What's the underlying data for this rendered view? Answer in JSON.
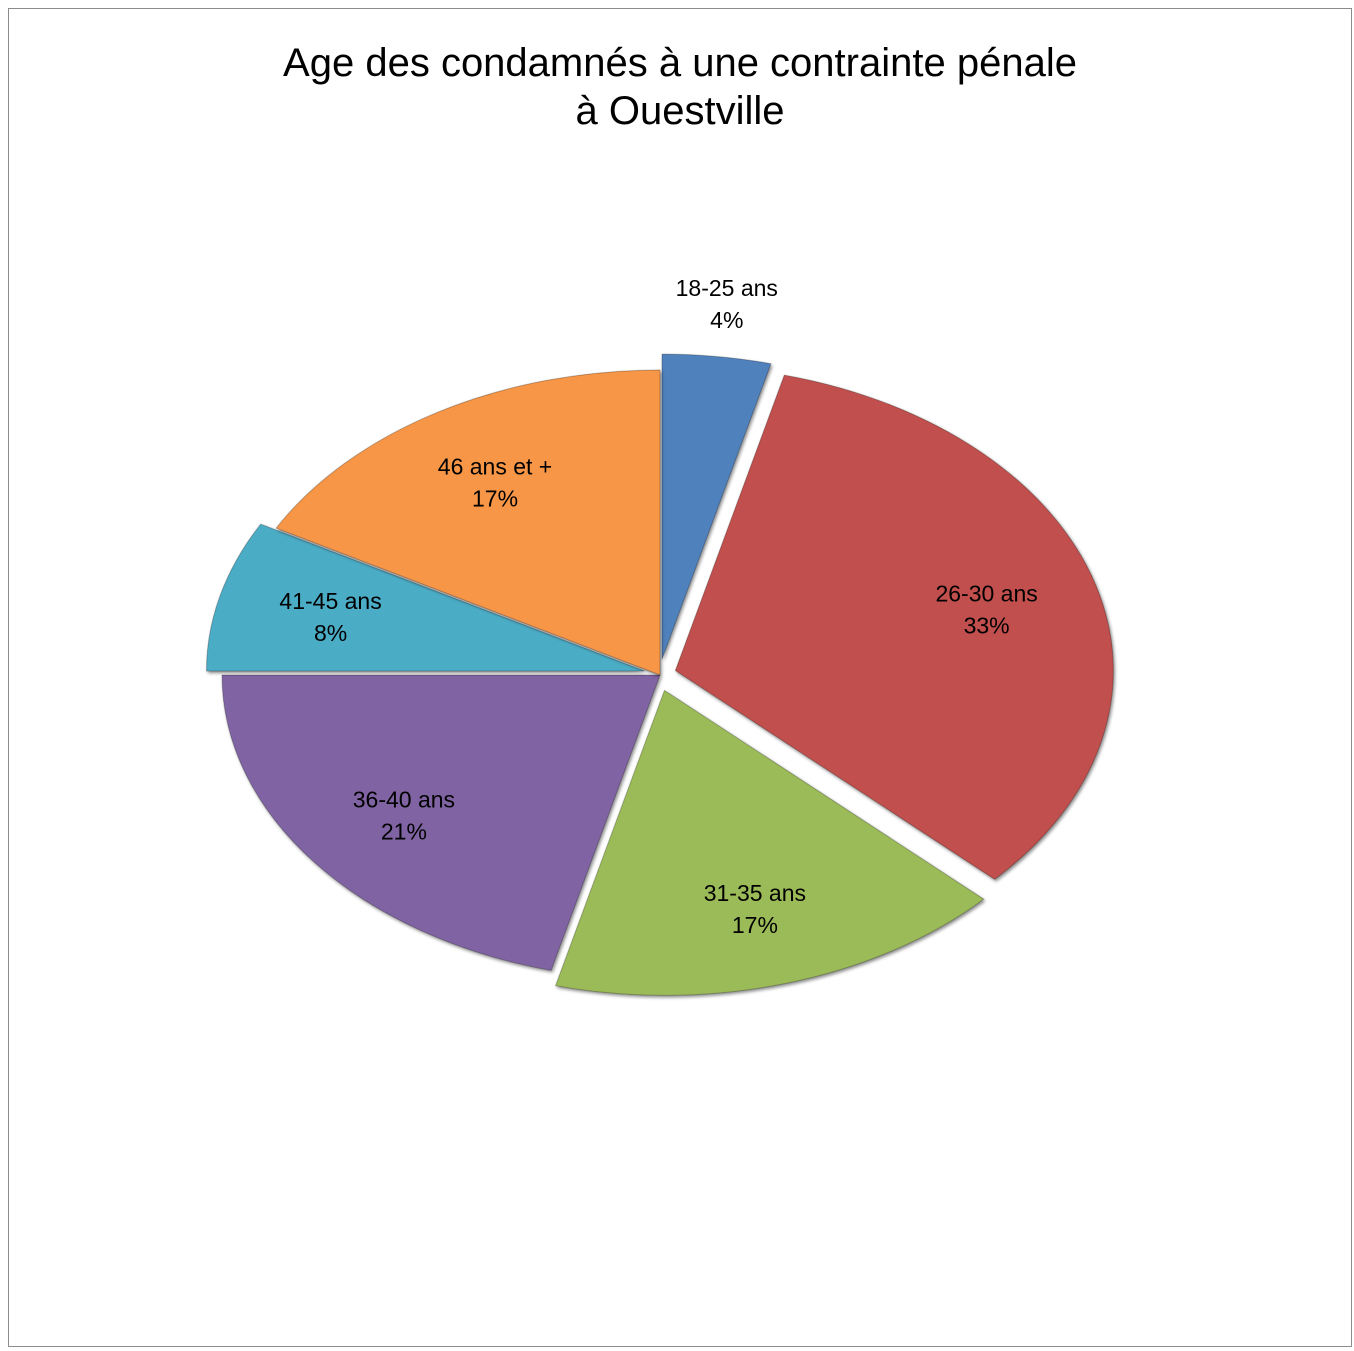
{
  "chart_data": {
    "type": "pie",
    "title": "Age des condamnés à une contrainte pénale\nà Ouestville",
    "slices": [
      {
        "label": "18-25 ans",
        "value": 4,
        "value_label": "4%",
        "color": "#4f81bd"
      },
      {
        "label": "26-30 ans",
        "value": 33,
        "value_label": "33%",
        "color": "#c0504d"
      },
      {
        "label": "31-35 ans",
        "value": 17,
        "value_label": "17%",
        "color": "#9bbb59"
      },
      {
        "label": "36-40 ans",
        "value": 21,
        "value_label": "21%",
        "color": "#8064a2"
      },
      {
        "label": "41-45 ans",
        "value": 8,
        "value_label": "8%",
        "color": "#4bacc6"
      },
      {
        "label": "46 ans et +",
        "value": 17,
        "value_label": "17%",
        "color": "#f79646"
      }
    ],
    "exploded": [
      "18-25 ans",
      "26-30 ans",
      "31-35 ans",
      "41-45 ans"
    ]
  }
}
